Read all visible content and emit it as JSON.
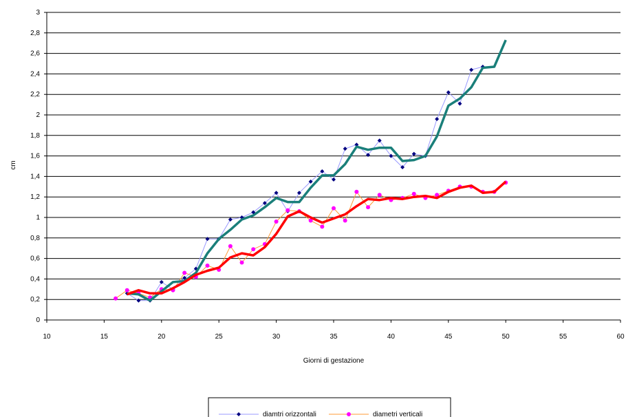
{
  "chart_data": {
    "type": "line",
    "title": "",
    "xlabel": "Giorni di gestazione",
    "ylabel": "cm",
    "xlim": [
      10,
      60
    ],
    "ylim": [
      0,
      3
    ],
    "xticks": [
      10,
      15,
      20,
      25,
      30,
      35,
      40,
      45,
      50,
      55,
      60
    ],
    "xtick_labels": [
      "10",
      "15",
      "20",
      "25",
      "30",
      "35",
      "40",
      "45",
      "50",
      "55",
      "60"
    ],
    "yticks": [
      0,
      0.2,
      0.4,
      0.6,
      0.8,
      1,
      1.2,
      1.4,
      1.6,
      1.8,
      2,
      2.2,
      2.4,
      2.6,
      2.8,
      3
    ],
    "ytick_labels": [
      "0",
      "0,2",
      "0,4",
      "0,6",
      "0,8",
      "1",
      "1,2",
      "1,4",
      "1,6",
      "1,8",
      "2",
      "2,2",
      "2,4",
      "2,6",
      "2,8",
      "3"
    ],
    "grid": "horizontal",
    "legend_position": "bottom",
    "series": [
      {
        "name": "diamtri orizzontali",
        "color": "#9999ff",
        "marker": "diamond",
        "marker_color": "#000080",
        "x": [
          17,
          18,
          19,
          20,
          21,
          22,
          23,
          24,
          25,
          26,
          27,
          28,
          29,
          30,
          31,
          32,
          33,
          34,
          35,
          36,
          37,
          38,
          39,
          40,
          41,
          42,
          43,
          44,
          45,
          46,
          47,
          48
        ],
        "y": [
          0.26,
          0.19,
          0.19,
          0.37,
          0.3,
          0.41,
          0.5,
          0.79,
          0.79,
          0.98,
          1.0,
          1.05,
          1.14,
          1.24,
          1.06,
          1.24,
          1.35,
          1.45,
          1.37,
          1.67,
          1.71,
          1.61,
          1.75,
          1.6,
          1.49,
          1.62,
          1.6,
          1.96,
          2.22,
          2.11,
          2.44,
          2.47
        ]
      },
      {
        "name": "diametri verticali",
        "color": "#ff9933",
        "marker": "circle",
        "marker_color": "#ff00ff",
        "x": [
          16,
          17,
          18,
          19,
          20,
          21,
          22,
          23,
          24,
          25,
          26,
          27,
          28,
          29,
          30,
          31,
          32,
          33,
          34,
          35,
          36,
          37,
          38,
          39,
          40,
          41,
          42,
          43,
          44,
          45,
          46,
          47,
          48,
          49,
          50
        ],
        "y": [
          0.21,
          0.29,
          0.26,
          0.22,
          0.3,
          0.29,
          0.46,
          0.42,
          0.53,
          0.49,
          0.72,
          0.56,
          0.69,
          0.74,
          0.96,
          1.07,
          1.06,
          0.97,
          0.91,
          1.09,
          0.97,
          1.25,
          1.1,
          1.22,
          1.17,
          1.19,
          1.23,
          1.19,
          1.22,
          1.26,
          1.3,
          1.3,
          1.25,
          1.25,
          1.34
        ]
      },
      {
        "name": "",
        "color": "#1a7f7a",
        "marker": "none",
        "x": [
          17,
          18,
          19,
          20,
          21,
          22,
          23,
          24,
          25,
          26,
          27,
          28,
          29,
          30,
          31,
          32,
          33,
          34,
          35,
          36,
          37,
          38,
          39,
          40,
          41,
          42,
          43,
          44,
          45,
          46,
          47,
          48,
          49,
          50
        ],
        "y": [
          0.26,
          0.25,
          0.19,
          0.28,
          0.37,
          0.38,
          0.46,
          0.65,
          0.79,
          0.88,
          0.98,
          1.02,
          1.1,
          1.19,
          1.15,
          1.15,
          1.29,
          1.41,
          1.41,
          1.52,
          1.69,
          1.66,
          1.68,
          1.68,
          1.55,
          1.56,
          1.6,
          1.79,
          2.09,
          2.16,
          2.27,
          2.46,
          2.47,
          2.73
        ]
      },
      {
        "name": "",
        "color": "#ff0000",
        "marker": "none",
        "x": [
          17,
          18,
          19,
          20,
          21,
          22,
          23,
          24,
          25,
          26,
          27,
          28,
          29,
          30,
          31,
          32,
          33,
          34,
          35,
          36,
          37,
          38,
          39,
          40,
          41,
          42,
          43,
          44,
          45,
          46,
          47,
          48,
          49,
          50
        ],
        "y": [
          0.25,
          0.29,
          0.26,
          0.26,
          0.31,
          0.37,
          0.44,
          0.48,
          0.51,
          0.61,
          0.65,
          0.63,
          0.71,
          0.84,
          1.01,
          1.06,
          1.0,
          0.95,
          0.99,
          1.03,
          1.11,
          1.18,
          1.17,
          1.19,
          1.18,
          1.2,
          1.21,
          1.19,
          1.25,
          1.29,
          1.31,
          1.24,
          1.25,
          1.35
        ]
      }
    ]
  }
}
